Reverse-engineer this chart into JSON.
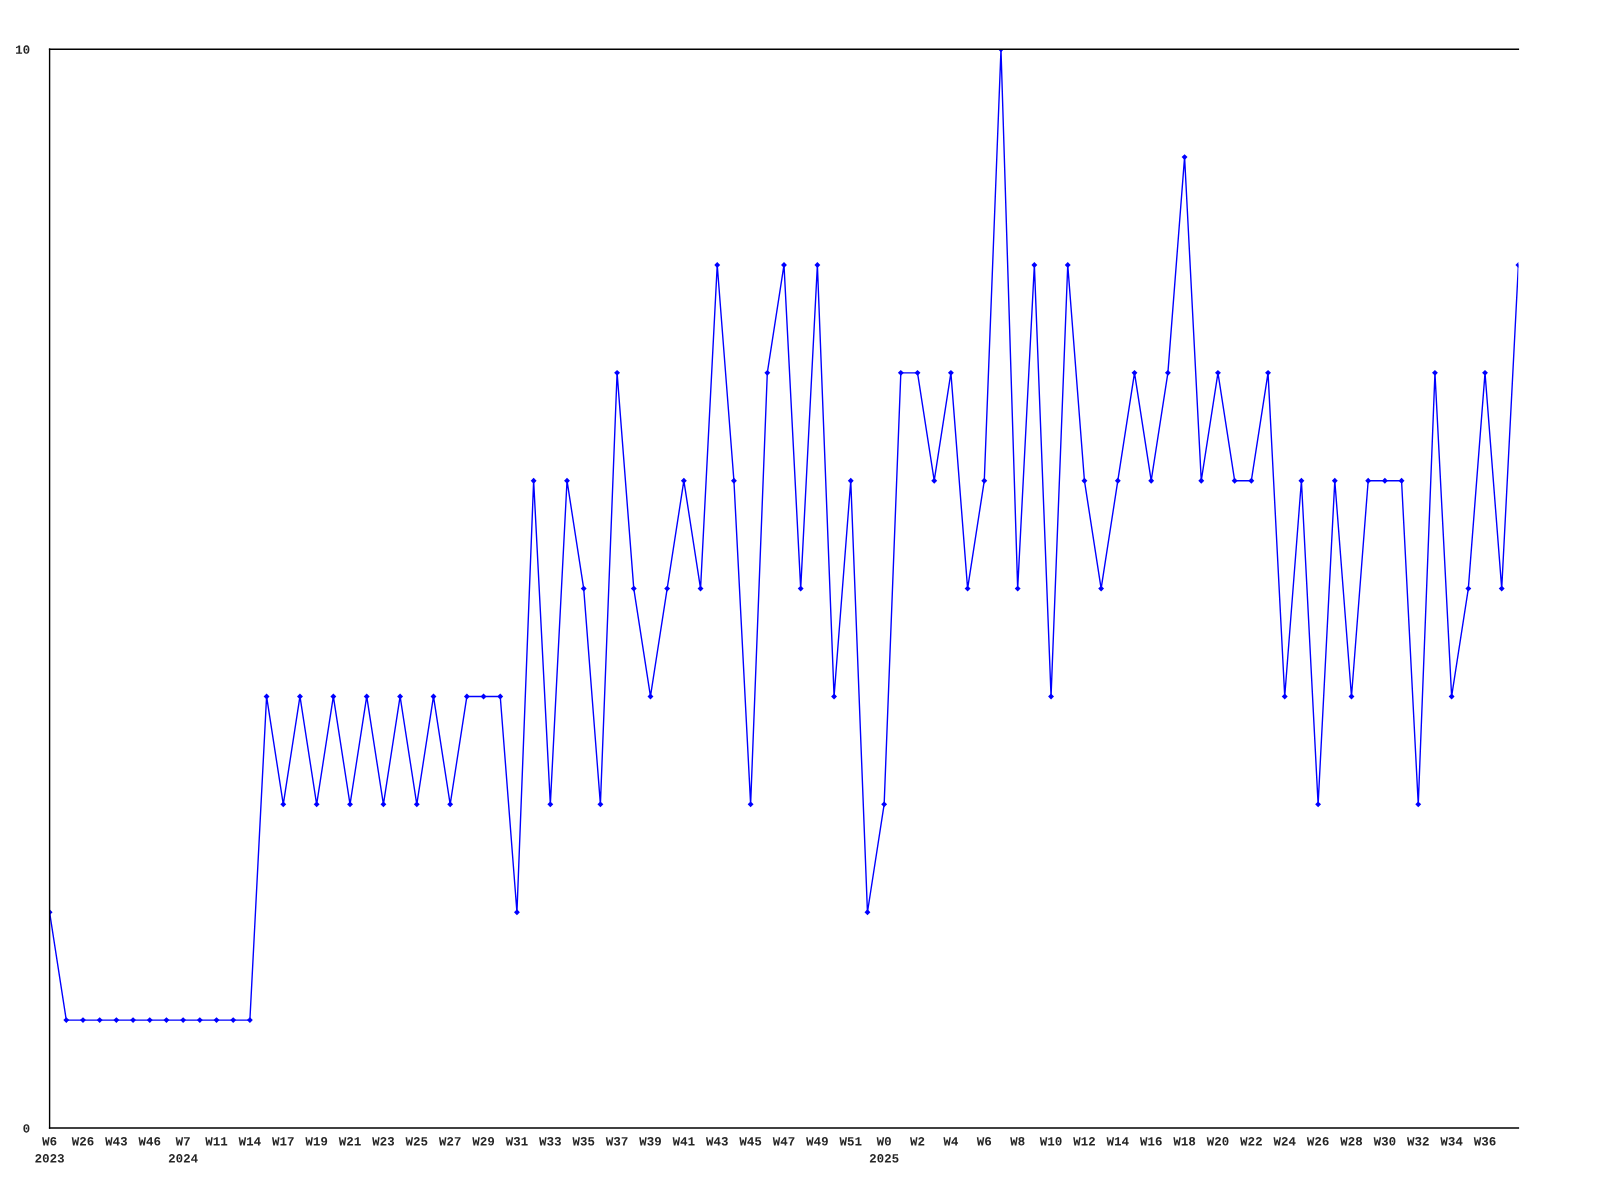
{
  "chart_data": {
    "type": "line",
    "categories": [
      "W6\n2023",
      null,
      "W26",
      null,
      "W43",
      null,
      "W46",
      null,
      "W7\n2024",
      null,
      "W11",
      null,
      "W14",
      null,
      "W17",
      null,
      "W19",
      null,
      "W21",
      null,
      "W23",
      null,
      "W25",
      null,
      "W27",
      null,
      "W29",
      null,
      "W31",
      null,
      "W33",
      null,
      "W35",
      null,
      "W37",
      null,
      "W39",
      null,
      "W41",
      null,
      "W43",
      null,
      "W45",
      null,
      "W47",
      null,
      "W49",
      null,
      "W51",
      null,
      "W0\n2025",
      null,
      "W2",
      null,
      "W4",
      null,
      "W6",
      null,
      "W8",
      null,
      "W10",
      null,
      "W12",
      null,
      "W14",
      null,
      "W16",
      null,
      "W18",
      null,
      "W20",
      null,
      "W22",
      null,
      "W24",
      null,
      "W26",
      null,
      "W28",
      null,
      "W30",
      null,
      "W32",
      null,
      "W34",
      null,
      "W36",
      null,
      null
    ],
    "series": [
      {
        "color": "#0000ff",
        "values": [
          2,
          1,
          1,
          1,
          1,
          1,
          1,
          1,
          1,
          1,
          1,
          1,
          1,
          4,
          3,
          4,
          3,
          4,
          3,
          4,
          3,
          4,
          3,
          4,
          3,
          4,
          4,
          4,
          2,
          6,
          3,
          6,
          5,
          3,
          7,
          5,
          4,
          5,
          6,
          5,
          8,
          6,
          3,
          7,
          8,
          5,
          8,
          4,
          6,
          2,
          3,
          7,
          7,
          6,
          7,
          5,
          6,
          10,
          5,
          8,
          4,
          8,
          6,
          5,
          6,
          7,
          6,
          7,
          9,
          6,
          7,
          6,
          6,
          7,
          4,
          6,
          3,
          6,
          4,
          6,
          6,
          6,
          3,
          7,
          4,
          5,
          7,
          5,
          8
        ]
      }
    ],
    "ylim": [
      0,
      10
    ],
    "yticks": [
      0,
      10
    ],
    "grid": false,
    "marker": "diamond",
    "line_style": "solid"
  }
}
